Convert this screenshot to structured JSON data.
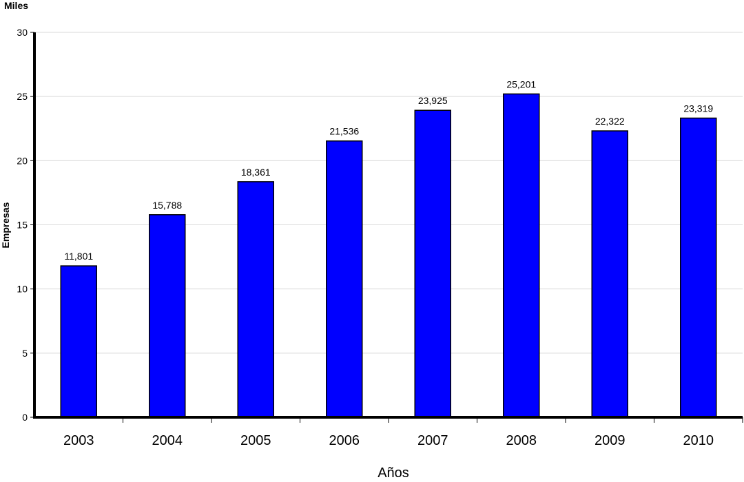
{
  "chart_data": {
    "type": "bar",
    "unit_label": "Miles",
    "ylabel": "Empresas",
    "xlabel": "Años",
    "categories": [
      "2003",
      "2004",
      "2005",
      "2006",
      "2007",
      "2008",
      "2009",
      "2010"
    ],
    "values": [
      11.801,
      15.788,
      18.361,
      21.536,
      23.925,
      25.201,
      22.322,
      23.319
    ],
    "data_labels": [
      "11,801",
      "15,788",
      "18,361",
      "21,536",
      "23,925",
      "25,201",
      "22,322",
      "23,319"
    ],
    "ylim": [
      0,
      30
    ],
    "yticks": [
      0,
      5,
      10,
      15,
      20,
      25,
      30
    ],
    "grid": true,
    "legend": "none",
    "colors": {
      "bar": "#0000ff",
      "bar_stroke": "#000000",
      "grid": "#d9d9d9",
      "axis": "#000000"
    }
  }
}
